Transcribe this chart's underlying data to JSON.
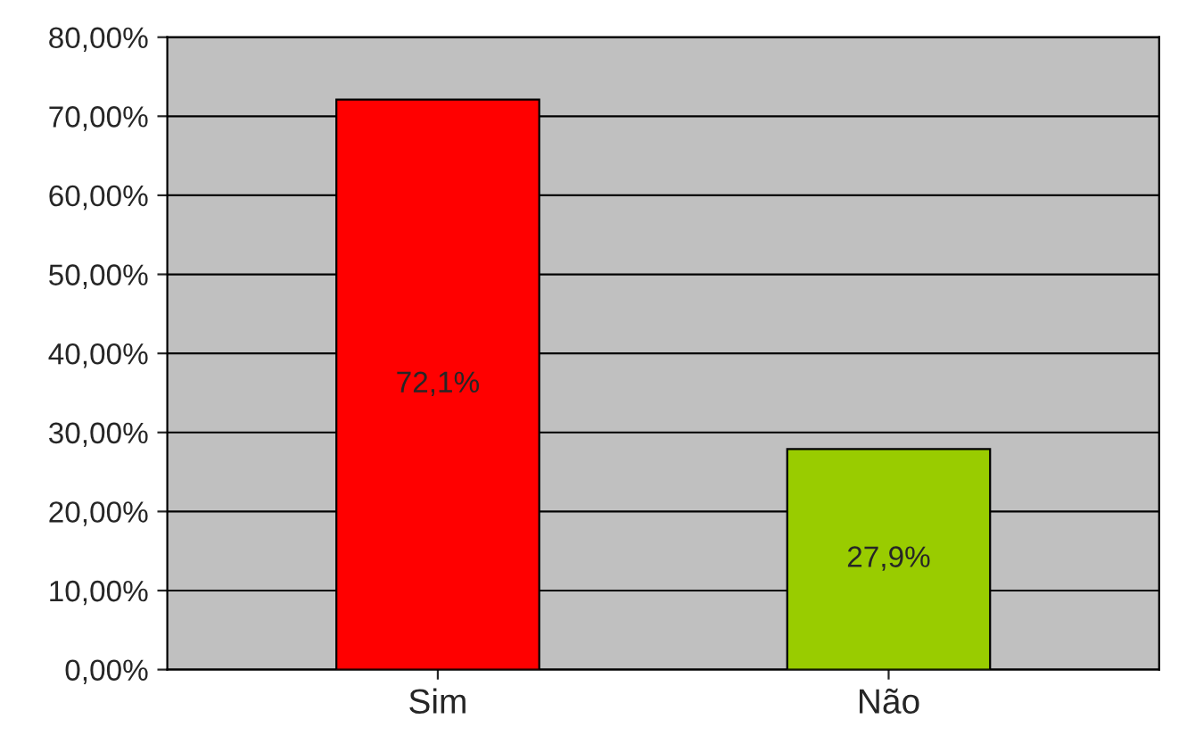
{
  "chart_data": {
    "type": "bar",
    "categories": [
      "Sim",
      "Não"
    ],
    "values": [
      72.1,
      27.9
    ],
    "colors": [
      "#ff0000",
      "#99cc00"
    ],
    "value_labels": [
      "72,1%",
      "27,9%"
    ],
    "ylim": [
      0,
      80
    ],
    "yticks": [
      {
        "value": 0,
        "label": "0,00%"
      },
      {
        "value": 10,
        "label": "10,00%"
      },
      {
        "value": 20,
        "label": "20,00%"
      },
      {
        "value": 30,
        "label": "30,00%"
      },
      {
        "value": 40,
        "label": "40,00%"
      },
      {
        "value": 50,
        "label": "50,00%"
      },
      {
        "value": 60,
        "label": "60,00%"
      },
      {
        "value": 70,
        "label": "70,00%"
      },
      {
        "value": 80,
        "label": "80,00%"
      }
    ],
    "grid": "y"
  }
}
